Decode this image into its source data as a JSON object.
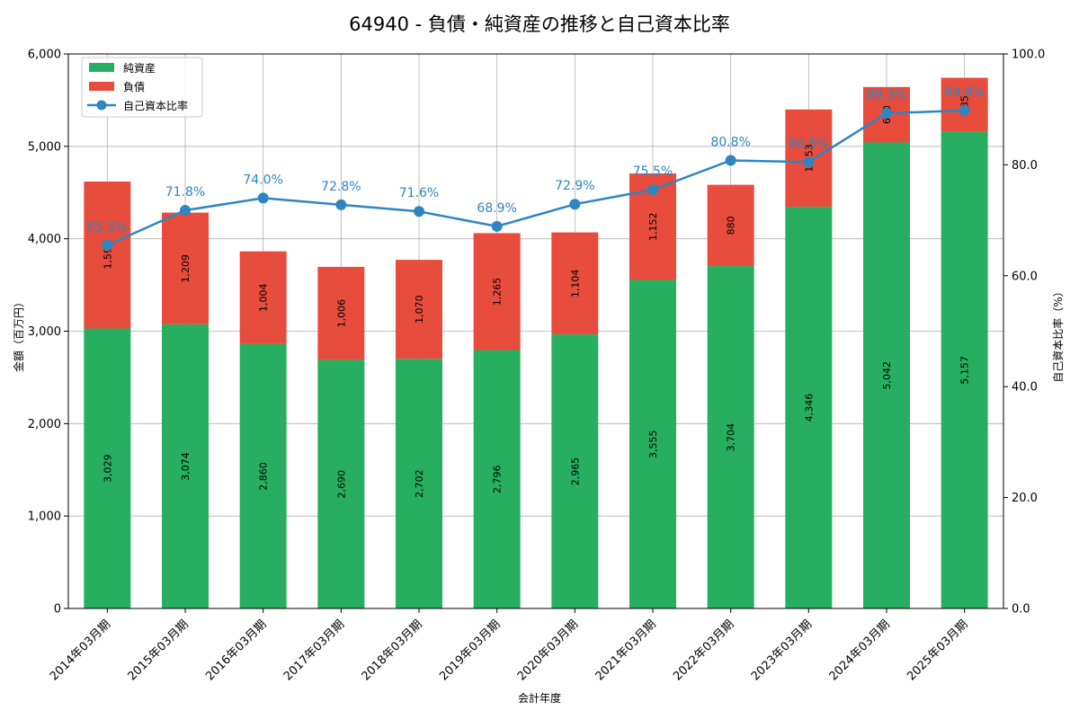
{
  "chart_data": {
    "type": "bar",
    "stacked": true,
    "title": "64940 - 負債・純資産の推移と自己資本比率",
    "xlabel": "会計年度",
    "ylabel": "金額（百万円）",
    "y2label": "自己資本比率（%）",
    "ylim": [
      0,
      6000
    ],
    "y2lim": [
      0,
      100
    ],
    "yticks": [
      0,
      1000,
      2000,
      3000,
      4000,
      5000,
      6000
    ],
    "ytick_labels": [
      "0",
      "1,000",
      "2,000",
      "3,000",
      "4,000",
      "5,000",
      "6,000"
    ],
    "y2ticks": [
      0,
      20,
      40,
      60,
      80,
      100
    ],
    "y2tick_labels": [
      "0.0",
      "20.0",
      "40.0",
      "60.0",
      "80.0",
      "100.0"
    ],
    "grid": true,
    "legend_position": "top-left",
    "categories": [
      "2014年03月期",
      "2015年03月期",
      "2016年03月期",
      "2017年03月期",
      "2018年03月期",
      "2019年03月期",
      "2020年03月期",
      "2021年03月期",
      "2022年03月期",
      "2023年03月期",
      "2024年03月期",
      "2025年03月期"
    ],
    "series": [
      {
        "name": "純資産",
        "kind": "bar",
        "color": "#27ae60",
        "values": [
          3029,
          3074,
          2860,
          2690,
          2702,
          2796,
          2965,
          3555,
          3704,
          4346,
          5042,
          5157
        ],
        "labels": [
          "3,029",
          "3,074",
          "2,860",
          "2,690",
          "2,702",
          "2,796",
          "2,965",
          "3,555",
          "3,704",
          "4,346",
          "5,042",
          "5,157"
        ]
      },
      {
        "name": "負債",
        "kind": "bar",
        "color": "#e74c3c",
        "values": [
          1590,
          1209,
          1004,
          1006,
          1070,
          1265,
          1104,
          1152,
          880,
          1053,
          600,
          585
        ],
        "labels": [
          "1,590",
          "1,209",
          "1,004",
          "1,006",
          "1,070",
          "1,265",
          "1,104",
          "1,152",
          "880",
          "1,053",
          "600",
          "585"
        ]
      },
      {
        "name": "自己資本比率",
        "kind": "line",
        "axis": "right",
        "color": "#2e86c1",
        "values": [
          65.5,
          71.8,
          74.0,
          72.8,
          71.6,
          68.9,
          72.9,
          75.5,
          80.8,
          80.5,
          89.3,
          89.8
        ],
        "labels": [
          "65.5%",
          "71.8%",
          "74.0%",
          "72.8%",
          "71.6%",
          "68.9%",
          "72.9%",
          "75.5%",
          "80.8%",
          "80.5%",
          "89.3%",
          "89.8%"
        ]
      }
    ]
  }
}
